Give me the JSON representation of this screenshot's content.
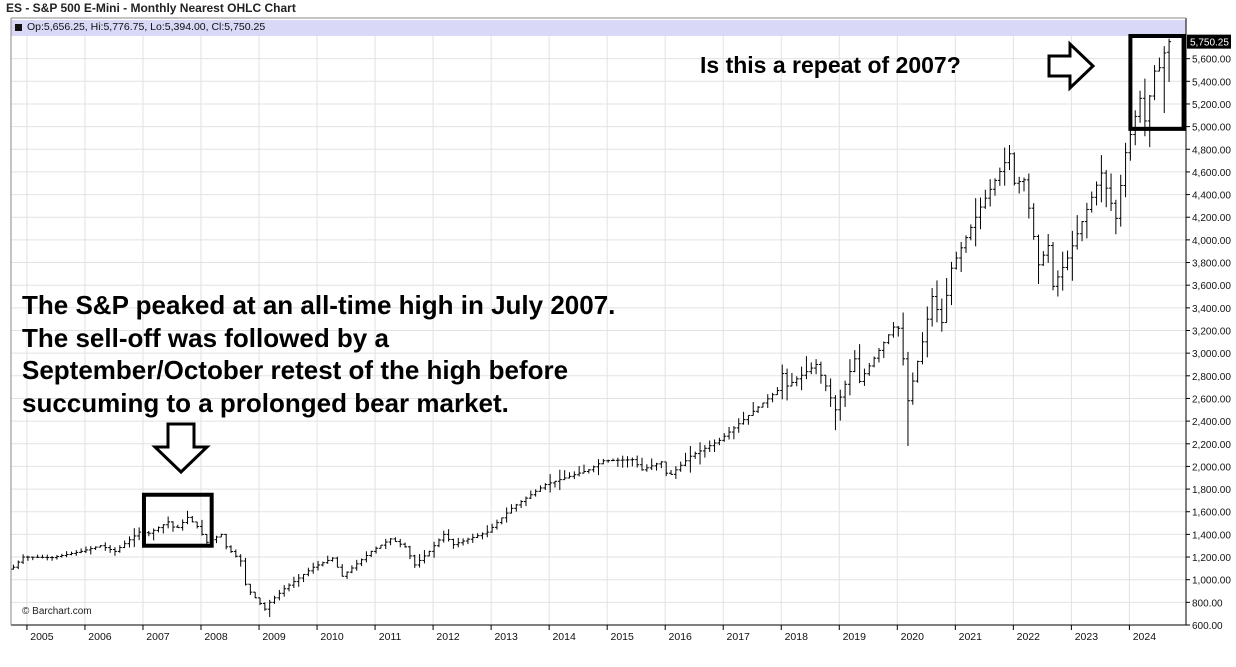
{
  "header": {
    "title": "ES - S&P 500 E-Mini - Monthly Nearest OHLC Chart",
    "ohlc_readout": "Op:5,656.25, Hi:5,776.75, Lo:5,394.00, Cl:5,750.25"
  },
  "colors": {
    "bars": "#000000",
    "grid": "#e2e2e2",
    "ohlc_bar_bg": "#d9d9f7",
    "last_price_badge": "#000000"
  },
  "annotations": {
    "left_text": "The S&P peaked at an all-time high in July 2007. The sell-off was followed by a September/October retest of the high before succuming to a prolonged bear market.",
    "right_text": "Is this a repeat of 2007?",
    "left_arrow_icon": "down-arrow-icon",
    "right_arrow_icon": "right-arrow-icon"
  },
  "copyright": "© Barchart.com",
  "chart_data": {
    "type": "ohlc",
    "frequency": "monthly",
    "grid": true,
    "yaxis_position": "right",
    "ylim": [
      600,
      5800
    ],
    "yticks": [
      600,
      800,
      1000,
      1200,
      1400,
      1600,
      1800,
      2000,
      2200,
      2400,
      2600,
      2800,
      3000,
      3200,
      3400,
      3600,
      3800,
      4000,
      4200,
      4400,
      4600,
      4800,
      5000,
      5200,
      5400,
      5600
    ],
    "ytick_labels": [
      "600.00",
      "800.00",
      "1,000.00",
      "1,200.00",
      "1,400.00",
      "1,600.00",
      "1,800.00",
      "2,000.00",
      "2,200.00",
      "2,400.00",
      "2,600.00",
      "2,800.00",
      "3,000.00",
      "3,200.00",
      "3,400.00",
      "3,600.00",
      "3,800.00",
      "4,000.00",
      "4,200.00",
      "4,400.00",
      "4,600.00",
      "4,800.00",
      "5,000.00",
      "5,200.00",
      "5,400.00",
      "5,600.00"
    ],
    "last_price_label": "5,750.25",
    "last_price": 5750.25,
    "xlim": [
      "2004-10",
      "2024-12"
    ],
    "xticks": [
      "2005",
      "2006",
      "2007",
      "2008",
      "2009",
      "2010",
      "2011",
      "2012",
      "2013",
      "2014",
      "2015",
      "2016",
      "2017",
      "2018",
      "2019",
      "2020",
      "2021",
      "2022",
      "2023",
      "2024"
    ],
    "anchors": [
      [
        "2004-10",
        1110
      ],
      [
        "2004-12",
        1200
      ],
      [
        "2005-06",
        1195
      ],
      [
        "2005-12",
        1250
      ],
      [
        "2006-04",
        1300
      ],
      [
        "2006-07",
        1250
      ],
      [
        "2006-12",
        1420
      ],
      [
        "2007-02",
        1410
      ],
      [
        "2007-06",
        1510
      ],
      [
        "2007-07",
        1465
      ],
      [
        "2007-08",
        1460
      ],
      [
        "2007-10",
        1550
      ],
      [
        "2007-12",
        1470
      ],
      [
        "2008-02",
        1330
      ],
      [
        "2008-05",
        1400
      ],
      [
        "2008-06",
        1290
      ],
      [
        "2008-09",
        1165
      ],
      [
        "2008-10",
        960
      ],
      [
        "2008-11",
        890
      ],
      [
        "2009-02",
        740
      ],
      [
        "2009-03",
        800
      ],
      [
        "2009-06",
        920
      ],
      [
        "2009-12",
        1110
      ],
      [
        "2010-04",
        1190
      ],
      [
        "2010-06",
        1030
      ],
      [
        "2010-12",
        1250
      ],
      [
        "2011-04",
        1360
      ],
      [
        "2011-07",
        1290
      ],
      [
        "2011-09",
        1130
      ],
      [
        "2011-12",
        1250
      ],
      [
        "2012-03",
        1400
      ],
      [
        "2012-05",
        1310
      ],
      [
        "2012-12",
        1420
      ],
      [
        "2013-05",
        1630
      ],
      [
        "2013-12",
        1840
      ],
      [
        "2014-09",
        1970
      ],
      [
        "2014-12",
        2050
      ],
      [
        "2015-06",
        2060
      ],
      [
        "2015-08",
        1970
      ],
      [
        "2015-12",
        2040
      ],
      [
        "2016-01",
        1940
      ],
      [
        "2016-02",
        1930
      ],
      [
        "2016-06",
        2090
      ],
      [
        "2016-12",
        2230
      ],
      [
        "2017-12",
        2670
      ],
      [
        "2018-01",
        2820
      ],
      [
        "2018-02",
        2710
      ],
      [
        "2018-08",
        2900
      ],
      [
        "2018-10",
        2710
      ],
      [
        "2018-12",
        2500
      ],
      [
        "2019-04",
        2950
      ],
      [
        "2019-05",
        2750
      ],
      [
        "2019-12",
        3230
      ],
      [
        "2020-01",
        3220
      ],
      [
        "2020-02",
        2950
      ],
      [
        "2020-03",
        2580
      ],
      [
        "2020-06",
        3100
      ],
      [
        "2020-08",
        3500
      ],
      [
        "2020-10",
        3270
      ],
      [
        "2020-12",
        3750
      ],
      [
        "2021-06",
        4290
      ],
      [
        "2021-12",
        4760
      ],
      [
        "2022-01",
        4500
      ],
      [
        "2022-03",
        4530
      ],
      [
        "2022-06",
        3780
      ],
      [
        "2022-08",
        3950
      ],
      [
        "2022-09",
        3590
      ],
      [
        "2022-12",
        3840
      ],
      [
        "2023-07",
        4590
      ],
      [
        "2023-10",
        4190
      ],
      [
        "2023-12",
        4770
      ],
      [
        "2024-03",
        5250
      ],
      [
        "2024-04",
        5050
      ],
      [
        "2024-06",
        5490
      ],
      [
        "2024-07",
        5520
      ],
      [
        "2024-08",
        5650
      ],
      [
        "2024-09",
        5750
      ]
    ],
    "ohlc_last": {
      "open": 5656.25,
      "high": 5776.75,
      "low": 5394.0,
      "close": 5750.25
    },
    "callout_boxes": [
      {
        "from": "2007-01",
        "to": "2008-03",
        "ylow": 1300,
        "yhigh": 1750
      },
      {
        "from": "2024-01",
        "to": "2024-12",
        "ylow": 4980,
        "yhigh": 5800
      }
    ]
  }
}
